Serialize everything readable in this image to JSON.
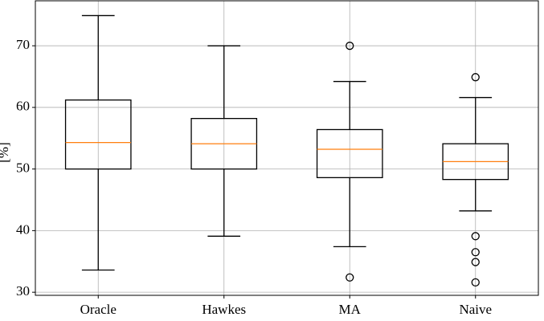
{
  "chart_data": {
    "type": "box",
    "ylabel": "[%]",
    "categories": [
      "Oracle",
      "Hawkes",
      "MA",
      "Naive"
    ],
    "boxes": [
      {
        "whislo": 33.6,
        "q1": 50,
        "med": 54.3,
        "q3": 61.2,
        "whishi": 74.9,
        "fliers": []
      },
      {
        "whislo": 39.1,
        "q1": 50,
        "med": 54.1,
        "q3": 58.2,
        "whishi": 70,
        "fliers": []
      },
      {
        "whislo": 37.4,
        "q1": 48.6,
        "med": 53.2,
        "q3": 56.4,
        "whishi": 64.2,
        "fliers": [
          70,
          32.4
        ]
      },
      {
        "whislo": 43.2,
        "q1": 48.3,
        "med": 51.2,
        "q3": 54.1,
        "whishi": 61.6,
        "fliers": [
          64.9,
          39.1,
          36.5,
          34.9,
          31.6
        ]
      }
    ],
    "ylim": [
      29.5,
      77.3
    ],
    "yticks": [
      30,
      40,
      50,
      60,
      70
    ],
    "grid": true,
    "box_color": "#000000",
    "median_color": "#ff7f0e"
  }
}
